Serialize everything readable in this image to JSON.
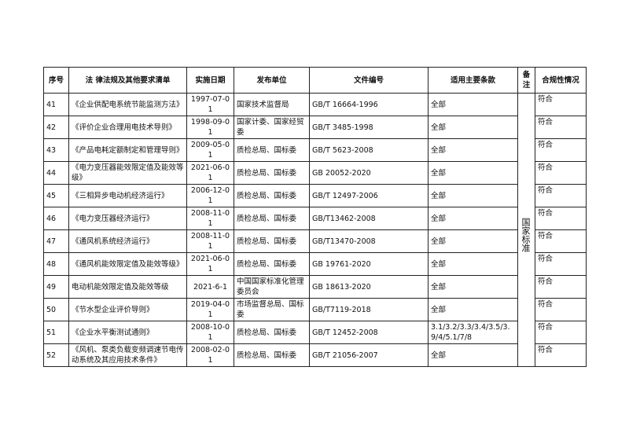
{
  "table": {
    "header": [
      "序号",
      "法 律法规及其他要求清单",
      "实施日期",
      "发布单位",
      "文件编号",
      "适用主要条款",
      "备注",
      "合规性情况"
    ],
    "remark": "国家标准",
    "rows": [
      [
        "41",
        "《企业供配电系统节能监测方法》",
        "1997-07-01",
        "国家技术监督局",
        "GB/T 16664-1996",
        "全部",
        "符合"
      ],
      [
        "42",
        "《评价企业合理用电技术导则》",
        "1998-09-01",
        "国家计委、国家经贸委",
        "GB/T 3485-1998",
        "全部",
        "符合"
      ],
      [
        "43",
        "《产品电耗定额制定和管理导则》",
        "2009-05-01",
        "质检总局、国标委",
        "GB/T 5623-2008",
        "全部",
        "符合"
      ],
      [
        "44",
        "《电力变压器能效限定值及能效等级》",
        "2021-06-01",
        "质检总局、国标委",
        "GB 20052-2020",
        "全部",
        "符合"
      ],
      [
        "45",
        "《三相异步电动机经济运行》",
        "2006-12-01",
        "质检总局、国标委",
        "GB/T 12497-2006",
        "全部",
        "符合"
      ],
      [
        "46",
        "《电力变压器经济运行》",
        "2008-11-01",
        "质检总局、国标委",
        "GB/T13462-2008",
        "全部",
        "符合"
      ],
      [
        "47",
        "《通风机系统经济运行》",
        "2008-11-01",
        "质检总局、国标委",
        "GB/T13470-2008",
        "全部",
        "符合"
      ],
      [
        "48",
        "《通风机能效限定值及能效等级》",
        "2021-06-01",
        "质检总局、国标委",
        "GB 19761-2020",
        "全部",
        "符合"
      ],
      [
        "49",
        "电动机能效限定值及能效等级",
        "2021-6-1",
        "中国国家标准化管理委员会",
        "GB 18613-2020",
        "全部",
        "符合"
      ],
      [
        "50",
        "《节水型企业评价导则》",
        "2019-04-01",
        "市场监督总局、国标委",
        "GB/T7119-2018",
        "全部",
        "符合"
      ],
      [
        "51",
        "《企业水平衡测试通则》",
        "2008-10-01",
        "质检总局、国标委",
        "GB/T 12452-2008",
        "3.1/3.2/3.3/3.4/3.5/3.9/4/5.1/7/8",
        "符合"
      ],
      [
        "52",
        "《风机、泵类负载变频调速节电传动系统及其应用技术条件》",
        "2008-02-01",
        "质检总局、国标委",
        "GB/T 21056-2007",
        "全部",
        "符合"
      ]
    ]
  }
}
